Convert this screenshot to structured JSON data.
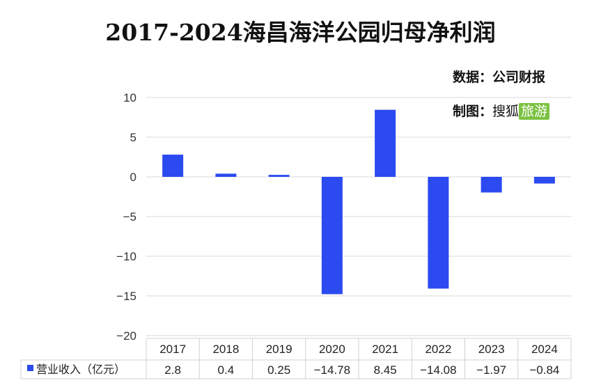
{
  "title": "2017-2024海昌海洋公园归母净利润",
  "source_label": "数据：公司财报",
  "maker_label": "制图：",
  "maker_name": "搜狐",
  "maker_brand": "旅游",
  "chart_data": {
    "type": "bar",
    "categories": [
      "2017",
      "2018",
      "2019",
      "2020",
      "2021",
      "2022",
      "2023",
      "2024"
    ],
    "series": [
      {
        "name": "营业收入（亿元）",
        "values": [
          2.8,
          0.4,
          0.25,
          -14.78,
          8.45,
          -14.08,
          -1.97,
          -0.84
        ],
        "color": "#2b4af0"
      }
    ],
    "value_labels": [
      "2.8",
      "0.4",
      "0.25",
      "−14.78",
      "8.45",
      "−14.08",
      "−1.97",
      "−0.84"
    ],
    "ylim": [
      -20,
      10
    ],
    "yticks": [
      10,
      5,
      0,
      -5,
      -10,
      -15,
      -20
    ],
    "ytick_labels": [
      "10",
      "5",
      "0",
      "−5",
      "−10",
      "−15",
      "−20"
    ],
    "grid": true,
    "legend": "bottom-left data table"
  }
}
